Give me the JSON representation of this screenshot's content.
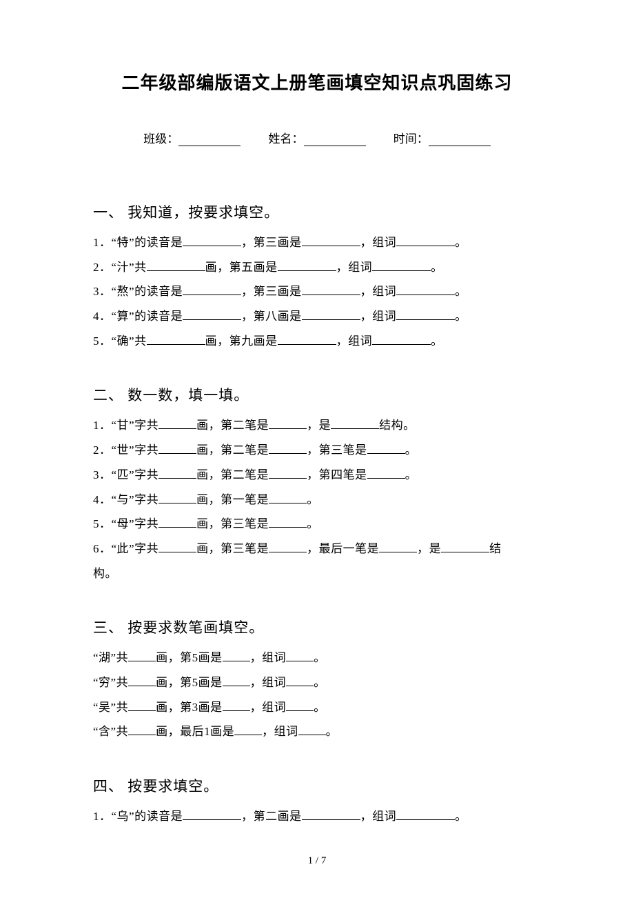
{
  "title": "二年级部编版语文上册笔画填空知识点巩固练习",
  "info": {
    "class_label": "班级：",
    "name_label": "姓名：",
    "time_label": "时间："
  },
  "section1": {
    "heading": "一、 我知道，按要求填空。",
    "q1_prefix": "1．“特”的读音是",
    "q1_mid1": "，第三画是",
    "q1_mid2": "，组词",
    "q1_end": "。",
    "q2_prefix": "2．“汁”共",
    "q2_mid1": "画，第五画是",
    "q2_mid2": "，组词",
    "q2_end": "。",
    "q3_prefix": "3．“熬”的读音是",
    "q3_mid1": "，第三画是",
    "q3_mid2": "，组词",
    "q3_end": "。",
    "q4_prefix": "4．“算”的读音是",
    "q4_mid1": "，第八画是",
    "q4_mid2": "，组词",
    "q4_end": "。",
    "q5_prefix": "5．“确”共",
    "q5_mid1": "画，第九画是",
    "q5_mid2": "，组词",
    "q5_end": "。"
  },
  "section2": {
    "heading": "二、 数一数，填一填。",
    "q1_a": "1．“甘”字共",
    "q1_b": "画，第二笔是",
    "q1_c": "，是",
    "q1_d": "结构。",
    "q2_a": "2．“世”字共",
    "q2_b": "画，第二笔是",
    "q2_c": "，第三笔是",
    "q2_d": "。",
    "q3_a": "3．“匹”字共",
    "q3_b": "画，第二笔是",
    "q3_c": "，第四笔是",
    "q3_d": "。",
    "q4_a": "4．“与”字共",
    "q4_b": "画，第一笔是",
    "q4_c": "。",
    "q5_a": "5．“母”字共",
    "q5_b": "画，第三笔是",
    "q5_c": "。",
    "q6_a": "6．“此”字共",
    "q6_b": "画，第三笔是",
    "q6_c": "，最后一笔是",
    "q6_d": "，是",
    "q6_e": "结",
    "q6_f": "构。"
  },
  "section3": {
    "heading": "三、 按要求数笔画填空。",
    "q1_a": "“湖”共",
    "q1_b": "画，第5画是",
    "q1_c": "，组词",
    "q1_d": "。",
    "q2_a": "“穷”共",
    "q2_b": "画，第5画是",
    "q2_c": "，组词",
    "q2_d": "。",
    "q3_a": "“吴”共",
    "q3_b": "画，第3画是",
    "q3_c": "，组词",
    "q3_d": "。",
    "q4_a": "“含”共",
    "q4_b": "画，最后1画是",
    "q4_c": "，组词",
    "q4_d": "。"
  },
  "section4": {
    "heading": "四、 按要求填空。",
    "q1_a": "1．“乌”的读音是",
    "q1_b": "，第二画是",
    "q1_c": "，组词",
    "q1_d": "。"
  },
  "footer": "1 / 7"
}
